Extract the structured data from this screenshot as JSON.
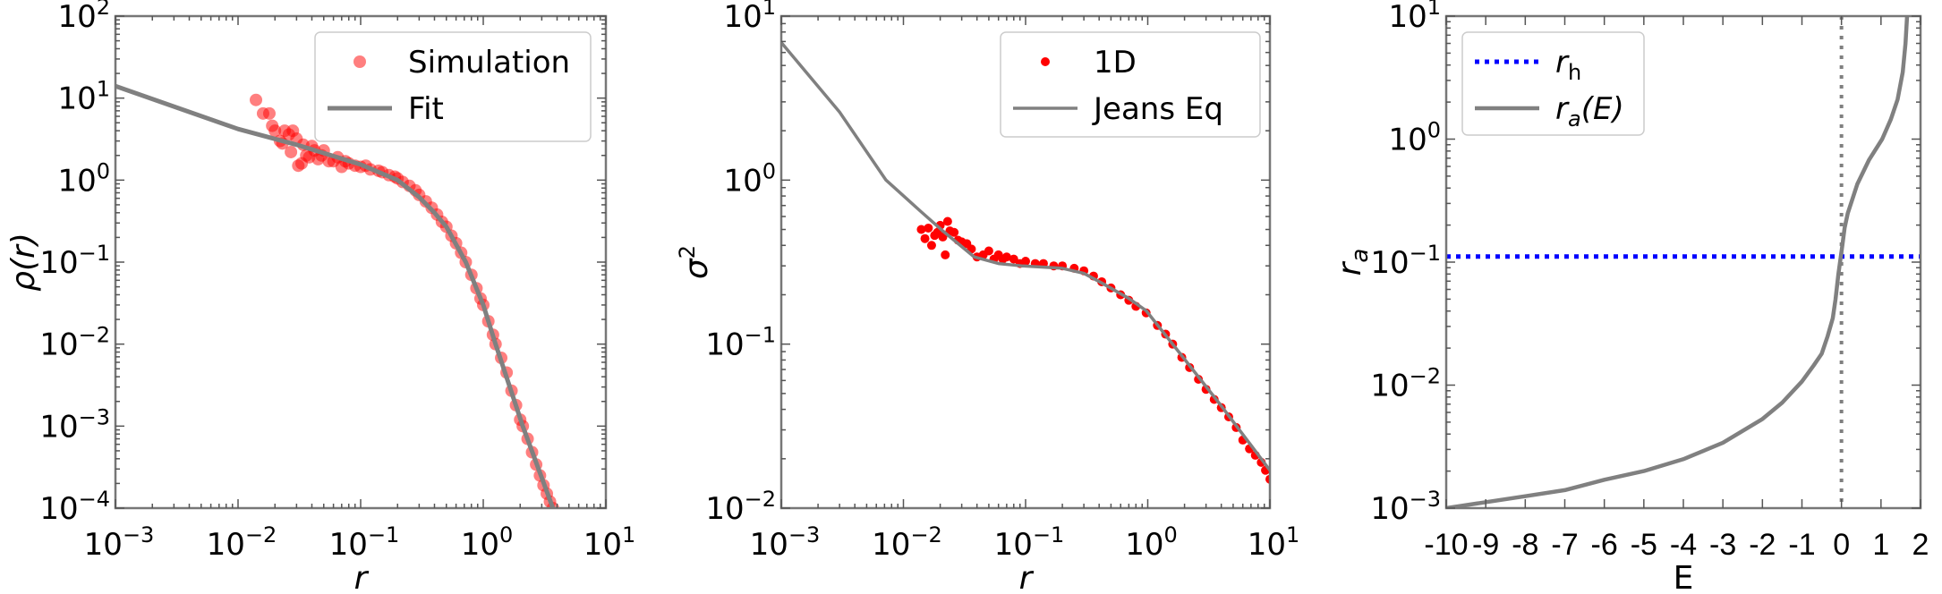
{
  "chart_data": [
    {
      "type": "scatter",
      "panel": "density",
      "xlabel": "r",
      "ylabel": "ρ(r)",
      "xscale": "log",
      "yscale": "log",
      "xlim": [
        0.001,
        10
      ],
      "ylim": [
        0.0001,
        100
      ],
      "x_ticks": [
        {
          "base": "10",
          "exp": "−3"
        },
        {
          "base": "10",
          "exp": "−2"
        },
        {
          "base": "10",
          "exp": "−1"
        },
        {
          "base": "10",
          "exp": "0"
        },
        {
          "base": "10",
          "exp": "1"
        }
      ],
      "y_ticks": [
        {
          "base": "10",
          "exp": "−4"
        },
        {
          "base": "10",
          "exp": "−3"
        },
        {
          "base": "10",
          "exp": "−2"
        },
        {
          "base": "10",
          "exp": "−1"
        },
        {
          "base": "10",
          "exp": "0"
        },
        {
          "base": "10",
          "exp": "1"
        },
        {
          "base": "10",
          "exp": "2"
        }
      ],
      "legend_position": "top-right",
      "series": [
        {
          "name": "Simulation",
          "kind": "scatter",
          "color": "#ff0000",
          "opacity": 0.5,
          "points": [
            [
              0.014,
              9.5
            ],
            [
              0.016,
              6.5
            ],
            [
              0.018,
              6.5
            ],
            [
              0.019,
              4.6
            ],
            [
              0.02,
              4.0
            ],
            [
              0.022,
              3.0
            ],
            [
              0.023,
              2.8
            ],
            [
              0.024,
              4.0
            ],
            [
              0.026,
              3.6
            ],
            [
              0.027,
              2.2
            ],
            [
              0.028,
              4.0
            ],
            [
              0.03,
              3.2
            ],
            [
              0.031,
              1.5
            ],
            [
              0.033,
              1.6
            ],
            [
              0.034,
              2.7
            ],
            [
              0.036,
              2.0
            ],
            [
              0.038,
              1.9
            ],
            [
              0.04,
              2.6
            ],
            [
              0.042,
              2.3
            ],
            [
              0.045,
              1.8
            ],
            [
              0.048,
              2.0
            ],
            [
              0.05,
              2.3
            ],
            [
              0.055,
              1.7
            ],
            [
              0.06,
              1.7
            ],
            [
              0.065,
              1.9
            ],
            [
              0.07,
              1.45
            ],
            [
              0.075,
              1.7
            ],
            [
              0.08,
              1.6
            ],
            [
              0.09,
              1.5
            ],
            [
              0.1,
              1.45
            ],
            [
              0.11,
              1.5
            ],
            [
              0.12,
              1.35
            ],
            [
              0.14,
              1.3
            ],
            [
              0.15,
              1.25
            ],
            [
              0.17,
              1.15
            ],
            [
              0.19,
              1.1
            ],
            [
              0.2,
              1.05
            ],
            [
              0.22,
              0.95
            ],
            [
              0.25,
              0.85
            ],
            [
              0.28,
              0.75
            ],
            [
              0.3,
              0.66
            ],
            [
              0.34,
              0.55
            ],
            [
              0.38,
              0.46
            ],
            [
              0.42,
              0.38
            ],
            [
              0.46,
              0.31
            ],
            [
              0.5,
              0.27
            ],
            [
              0.55,
              0.21
            ],
            [
              0.6,
              0.17
            ],
            [
              0.66,
              0.13
            ],
            [
              0.72,
              0.1
            ],
            [
              0.8,
              0.07
            ],
            [
              0.88,
              0.048
            ],
            [
              0.95,
              0.036
            ],
            [
              1.0,
              0.03
            ],
            [
              1.1,
              0.019
            ],
            [
              1.2,
              0.013
            ],
            [
              1.26,
              0.01
            ],
            [
              1.4,
              0.0068
            ],
            [
              1.55,
              0.0045
            ],
            [
              1.7,
              0.0027
            ],
            [
              1.85,
              0.0018
            ],
            [
              2.0,
              0.0012
            ],
            [
              2.1,
              0.001
            ],
            [
              2.3,
              0.0007
            ],
            [
              2.5,
              0.00048
            ],
            [
              2.7,
              0.00034
            ],
            [
              2.9,
              0.00025
            ],
            [
              3.1,
              0.00019
            ],
            [
              3.3,
              0.00015
            ],
            [
              3.5,
              0.00012
            ],
            [
              3.7,
              0.0001
            ]
          ]
        },
        {
          "name": "Fit",
          "kind": "line",
          "color": "#808080",
          "points": [
            [
              0.001,
              14
            ],
            [
              0.01,
              4.2
            ],
            [
              0.03,
              2.7
            ],
            [
              0.1,
              1.55
            ],
            [
              0.2,
              1.0
            ],
            [
              0.3,
              0.62
            ],
            [
              0.4,
              0.4
            ],
            [
              0.5,
              0.27
            ],
            [
              0.72,
              0.1
            ],
            [
              1.0,
              0.03
            ],
            [
              1.26,
              0.01
            ],
            [
              2.1,
              0.001
            ],
            [
              3.7,
              0.0001
            ]
          ]
        }
      ]
    },
    {
      "type": "scatter",
      "panel": "dispersion",
      "xlabel": "r",
      "ylabel": "σ²",
      "xscale": "log",
      "yscale": "log",
      "xlim": [
        0.001,
        10
      ],
      "ylim": [
        0.01,
        10
      ],
      "x_ticks": [
        {
          "base": "10",
          "exp": "−3"
        },
        {
          "base": "10",
          "exp": "−2"
        },
        {
          "base": "10",
          "exp": "−1"
        },
        {
          "base": "10",
          "exp": "0"
        },
        {
          "base": "10",
          "exp": "1"
        }
      ],
      "y_ticks": [
        {
          "base": "10",
          "exp": "−2"
        },
        {
          "base": "10",
          "exp": "−1"
        },
        {
          "base": "10",
          "exp": "0"
        },
        {
          "base": "10",
          "exp": "1"
        }
      ],
      "legend_position": "top-right",
      "series": [
        {
          "name": "1D",
          "kind": "scatter",
          "color": "#ff0000",
          "opacity": 1,
          "points": [
            [
              0.014,
              0.5
            ],
            [
              0.015,
              0.44
            ],
            [
              0.016,
              0.51
            ],
            [
              0.017,
              0.4
            ],
            [
              0.018,
              0.46
            ],
            [
              0.019,
              0.48
            ],
            [
              0.02,
              0.53
            ],
            [
              0.021,
              0.45
            ],
            [
              0.022,
              0.35
            ],
            [
              0.023,
              0.56
            ],
            [
              0.024,
              0.49
            ],
            [
              0.026,
              0.48
            ],
            [
              0.028,
              0.43
            ],
            [
              0.03,
              0.42
            ],
            [
              0.033,
              0.41
            ],
            [
              0.036,
              0.38
            ],
            [
              0.04,
              0.34
            ],
            [
              0.045,
              0.35
            ],
            [
              0.05,
              0.37
            ],
            [
              0.055,
              0.33
            ],
            [
              0.06,
              0.35
            ],
            [
              0.065,
              0.33
            ],
            [
              0.07,
              0.34
            ],
            [
              0.08,
              0.33
            ],
            [
              0.09,
              0.31
            ],
            [
              0.1,
              0.32
            ],
            [
              0.12,
              0.31
            ],
            [
              0.14,
              0.31
            ],
            [
              0.17,
              0.3
            ],
            [
              0.2,
              0.3
            ],
            [
              0.25,
              0.29
            ],
            [
              0.3,
              0.28
            ],
            [
              0.36,
              0.26
            ],
            [
              0.42,
              0.24
            ],
            [
              0.5,
              0.22
            ],
            [
              0.6,
              0.2
            ],
            [
              0.7,
              0.185
            ],
            [
              0.8,
              0.17
            ],
            [
              0.97,
              0.155
            ],
            [
              1.2,
              0.13
            ],
            [
              1.4,
              0.115
            ],
            [
              1.6,
              0.1
            ],
            [
              1.9,
              0.083
            ],
            [
              2.2,
              0.072
            ],
            [
              2.6,
              0.061
            ],
            [
              3.0,
              0.053
            ],
            [
              3.5,
              0.046
            ],
            [
              4.0,
              0.041
            ],
            [
              4.6,
              0.036
            ],
            [
              5.3,
              0.031
            ],
            [
              6.0,
              0.026
            ],
            [
              6.8,
              0.023
            ],
            [
              7.6,
              0.021
            ],
            [
              8.5,
              0.019
            ],
            [
              9.2,
              0.017
            ],
            [
              10,
              0.015
            ]
          ]
        },
        {
          "name": "Jeans Eq",
          "kind": "line",
          "color": "#808080",
          "points": [
            [
              0.001,
              6.9
            ],
            [
              0.003,
              2.6
            ],
            [
              0.0072,
              1.0
            ],
            [
              0.014,
              0.64
            ],
            [
              0.021,
              0.49
            ],
            [
              0.038,
              0.34
            ],
            [
              0.06,
              0.31
            ],
            [
              0.093,
              0.3
            ],
            [
              0.2,
              0.29
            ],
            [
              0.3,
              0.27
            ],
            [
              0.42,
              0.236
            ],
            [
              0.7,
              0.19
            ],
            [
              0.97,
              0.16
            ],
            [
              1.9,
              0.085
            ],
            [
              4.0,
              0.042
            ],
            [
              10,
              0.017
            ]
          ]
        }
      ]
    },
    {
      "type": "line",
      "panel": "anisotropy",
      "xlabel": "E",
      "ylabel": "r_a",
      "xscale": "linear",
      "yscale": "log",
      "xlim": [
        -10,
        2
      ],
      "ylim": [
        0.001,
        10
      ],
      "x_ticks": [
        "-10",
        "-9",
        "-8",
        "-7",
        "-6",
        "-5",
        "-4",
        "-3",
        "-2",
        "-1",
        "0",
        "1",
        "2"
      ],
      "y_ticks": [
        {
          "base": "10",
          "exp": "−3"
        },
        {
          "base": "10",
          "exp": "−2"
        },
        {
          "base": "10",
          "exp": "−1"
        },
        {
          "base": "10",
          "exp": "0"
        },
        {
          "base": "10",
          "exp": "1"
        }
      ],
      "legend_position": "top-left",
      "reference_vline": {
        "x": 0,
        "color": "#808080",
        "style": "dotted"
      },
      "series": [
        {
          "name": "r_h",
          "label_main": "r",
          "label_sub": "h",
          "label_suffix": "",
          "kind": "hline",
          "color": "#0000ff",
          "style": "dotted",
          "y": 0.111
        },
        {
          "name": "r_a(E)",
          "label_main": "r",
          "label_sub": "a",
          "label_suffix": "(E)",
          "kind": "line",
          "color": "#808080",
          "points": [
            [
              -10,
              0.001
            ],
            [
              -8,
              0.00125
            ],
            [
              -7,
              0.0014
            ],
            [
              -6,
              0.0017
            ],
            [
              -5,
              0.002
            ],
            [
              -4,
              0.0025
            ],
            [
              -3,
              0.0034
            ],
            [
              -2,
              0.0053
            ],
            [
              -1.5,
              0.0072
            ],
            [
              -1,
              0.0107
            ],
            [
              -0.7,
              0.0145
            ],
            [
              -0.5,
              0.018
            ],
            [
              -0.35,
              0.025
            ],
            [
              -0.22,
              0.035
            ],
            [
              -0.15,
              0.05
            ],
            [
              -0.08,
              0.079
            ],
            [
              0.02,
              0.135
            ],
            [
              0.08,
              0.19
            ],
            [
              0.16,
              0.25
            ],
            [
              0.4,
              0.43
            ],
            [
              0.7,
              0.68
            ],
            [
              1.03,
              1.0
            ],
            [
              1.25,
              1.45
            ],
            [
              1.42,
              2.1
            ],
            [
              1.55,
              3.5
            ],
            [
              1.62,
              6
            ],
            [
              1.66,
              10
            ]
          ]
        }
      ]
    }
  ]
}
